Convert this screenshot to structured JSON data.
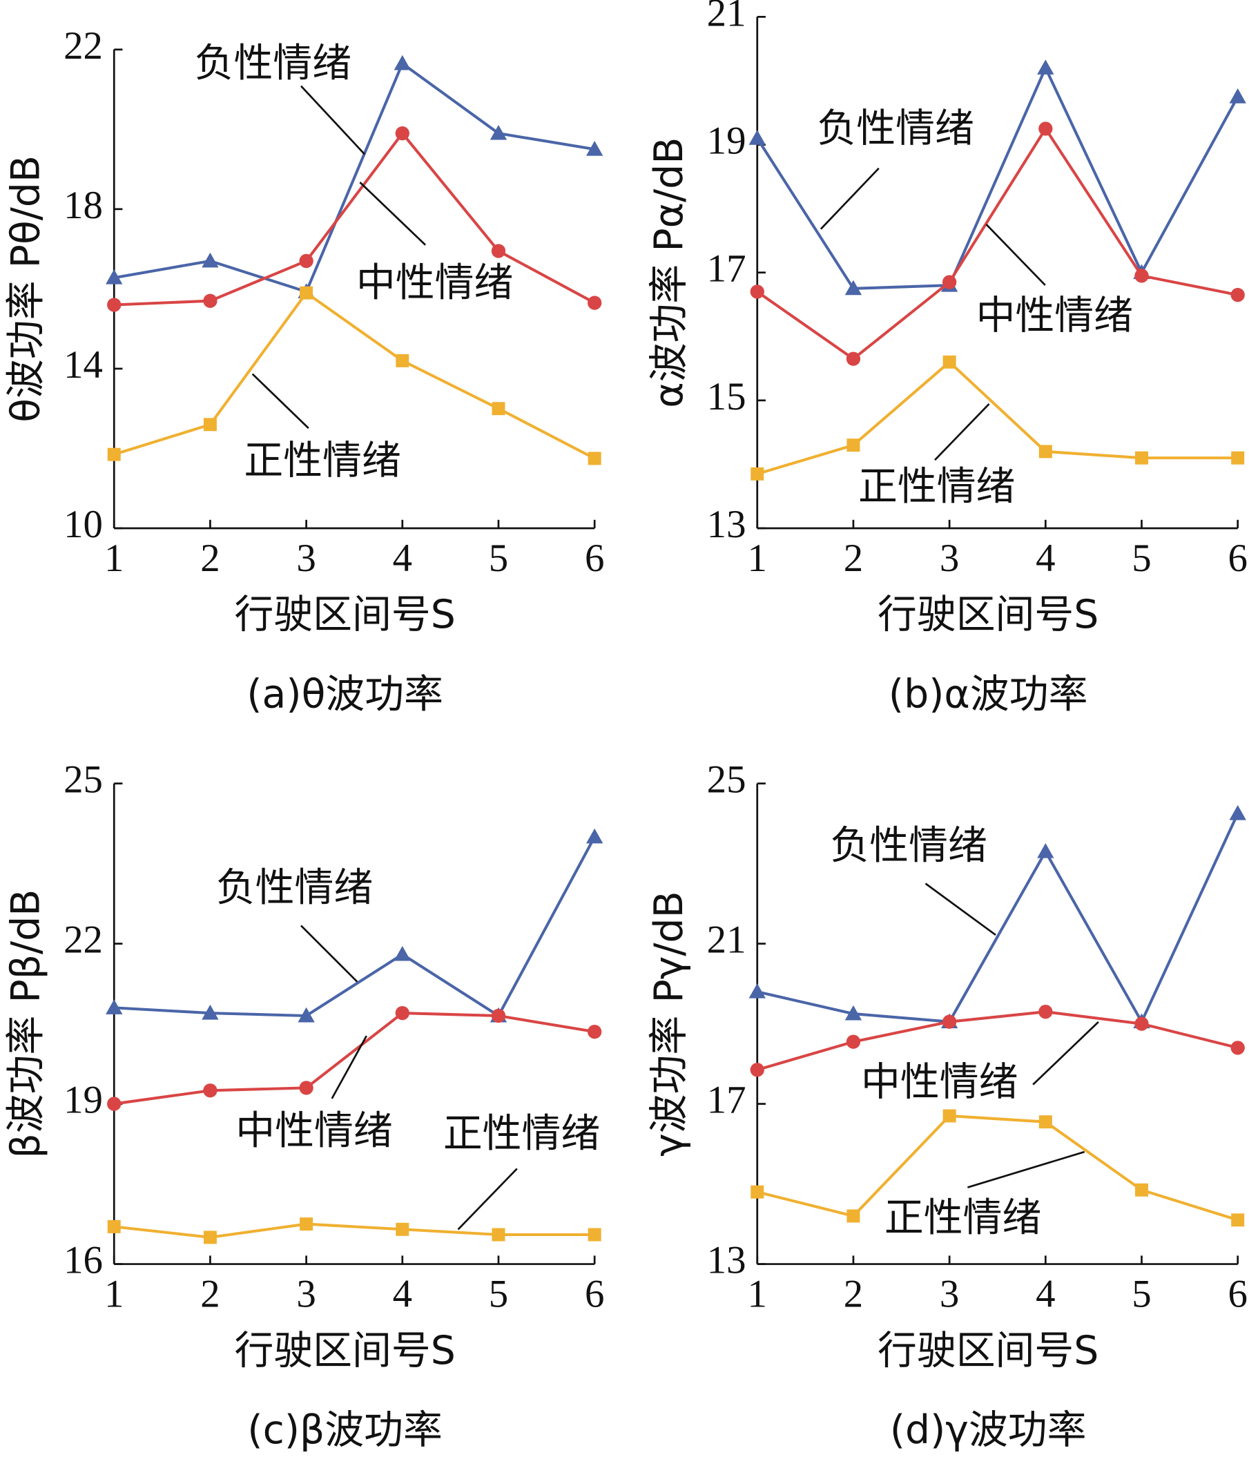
{
  "chart_data": [
    {
      "type": "line",
      "title": "(a)θ波功率",
      "xlabel": "行驶区间号S",
      "ylabel": "θ波功率 Pθ/dB",
      "x": [
        1,
        2,
        3,
        4,
        5,
        6
      ],
      "xlim": [
        1,
        6
      ],
      "xticks": [
        1,
        2,
        3,
        4,
        5,
        6
      ],
      "ylim": [
        10,
        22
      ],
      "yticks": [
        10,
        14,
        18,
        22
      ],
      "series": [
        {
          "name": "负性情绪",
          "color": "#4a65a8",
          "marker": "triangle",
          "values": [
            16.28,
            16.7,
            15.93,
            21.65,
            19.9,
            19.5
          ]
        },
        {
          "name": "中性情绪",
          "color": "#d94545",
          "marker": "circle",
          "values": [
            15.6,
            15.7,
            16.7,
            19.9,
            16.95,
            15.65
          ]
        },
        {
          "name": "正性情绪",
          "color": "#f0b030",
          "marker": "square",
          "values": [
            11.85,
            12.6,
            15.9,
            14.2,
            13.0,
            11.75
          ]
        }
      ]
    },
    {
      "type": "line",
      "title": "(b)α波功率",
      "xlabel": "行驶区间号S",
      "ylabel": "α波功率 Pα/dB",
      "x": [
        1,
        2,
        3,
        4,
        5,
        6
      ],
      "xlim": [
        1,
        6
      ],
      "xticks": [
        1,
        2,
        3,
        4,
        5,
        6
      ],
      "ylim": [
        13,
        21
      ],
      "yticks": [
        13,
        15,
        17,
        19,
        21
      ],
      "series": [
        {
          "name": "负性情绪",
          "color": "#4a65a8",
          "marker": "triangle",
          "values": [
            19.1,
            16.75,
            16.8,
            20.2,
            17.0,
            19.75
          ]
        },
        {
          "name": "中性情绪",
          "color": "#d94545",
          "marker": "circle",
          "values": [
            16.7,
            15.65,
            16.85,
            19.25,
            16.95,
            16.65
          ]
        },
        {
          "name": "正性情绪",
          "color": "#f0b030",
          "marker": "square",
          "values": [
            13.85,
            14.3,
            15.6,
            14.2,
            14.1,
            14.1
          ]
        }
      ]
    },
    {
      "type": "line",
      "title": "(c)β波功率",
      "xlabel": "行驶区间号S",
      "ylabel": "β波功率 Pβ/dB",
      "x": [
        1,
        2,
        3,
        4,
        5,
        6
      ],
      "xlim": [
        1,
        6
      ],
      "xticks": [
        1,
        2,
        3,
        4,
        5,
        6
      ],
      "ylim": [
        16,
        25
      ],
      "yticks": [
        16,
        19,
        22,
        25
      ],
      "series": [
        {
          "name": "负性情绪",
          "color": "#4a65a8",
          "marker": "triangle",
          "values": [
            20.8,
            20.7,
            20.65,
            21.8,
            20.65,
            24.0
          ]
        },
        {
          "name": "中性情绪",
          "color": "#d94545",
          "marker": "circle",
          "values": [
            19.0,
            19.25,
            19.3,
            20.7,
            20.65,
            20.35
          ]
        },
        {
          "name": "正性情绪",
          "color": "#f0b030",
          "marker": "square",
          "values": [
            16.7,
            16.5,
            16.75,
            16.65,
            16.55,
            16.55
          ]
        }
      ]
    },
    {
      "type": "line",
      "title": "(d)γ波功率",
      "xlabel": "行驶区间号S",
      "ylabel": "γ波功率 Pγ/dB",
      "x": [
        1,
        2,
        3,
        4,
        5,
        6
      ],
      "xlim": [
        1,
        6
      ],
      "xticks": [
        1,
        2,
        3,
        4,
        5,
        6
      ],
      "ylim": [
        13,
        25
      ],
      "yticks": [
        13,
        17,
        21,
        25
      ],
      "series": [
        {
          "name": "负性情绪",
          "color": "#4a65a8",
          "marker": "triangle",
          "values": [
            19.8,
            19.25,
            19.05,
            23.3,
            19.05,
            24.25
          ]
        },
        {
          "name": "中性情绪",
          "color": "#d94545",
          "marker": "circle",
          "values": [
            17.85,
            18.55,
            19.05,
            19.3,
            19.0,
            18.4
          ]
        },
        {
          "name": "正性情绪",
          "color": "#f0b030",
          "marker": "square",
          "values": [
            14.8,
            14.2,
            16.7,
            16.55,
            14.85,
            14.1
          ]
        }
      ]
    }
  ]
}
